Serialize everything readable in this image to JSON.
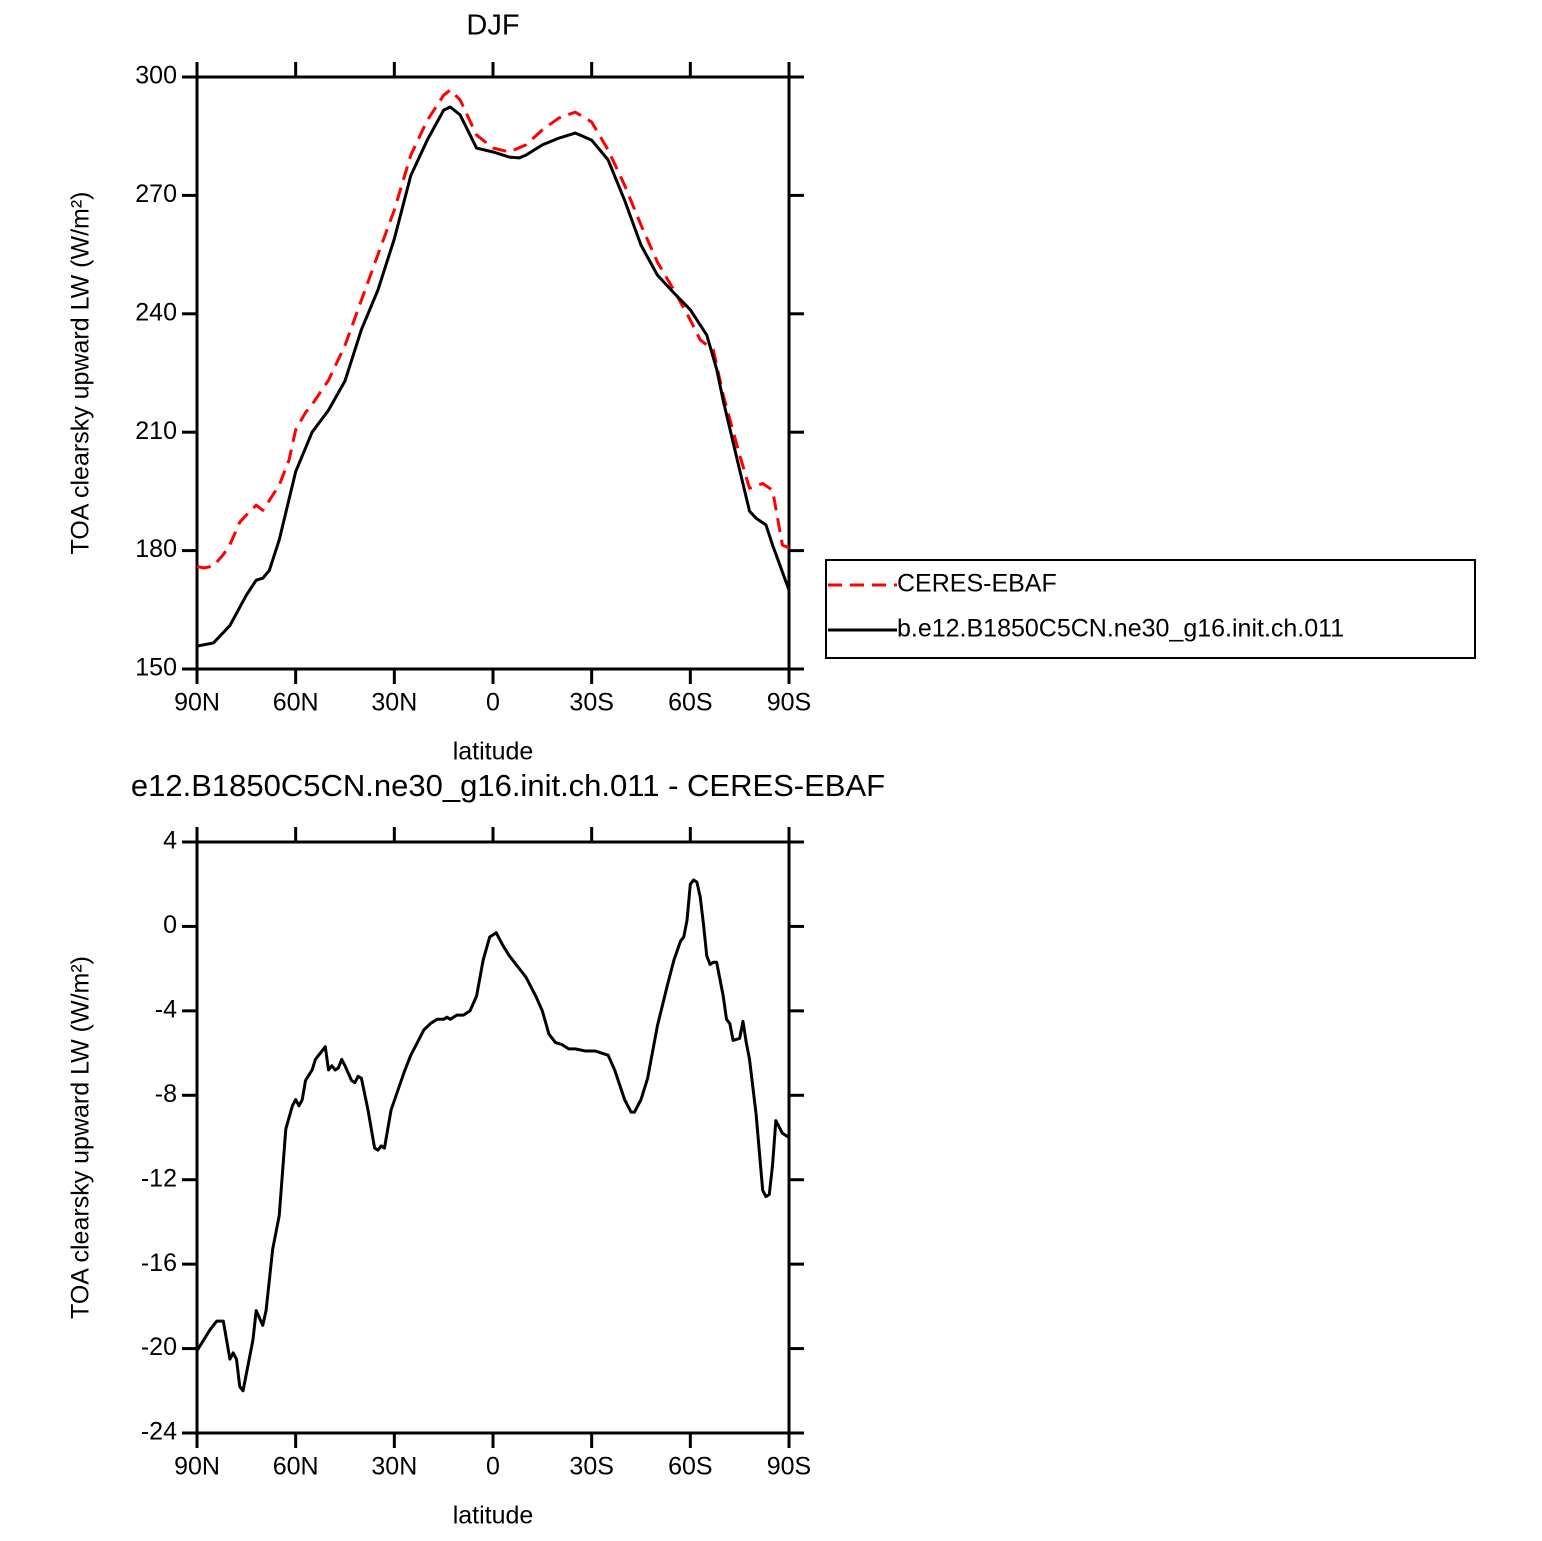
{
  "chart_data": [
    {
      "type": "line",
      "title": "DJF",
      "xlabel": "latitude",
      "ylabel": "TOA clearsky upward LW (W/m²)",
      "xlim": [
        90,
        -90
      ],
      "xticks": [
        {
          "value": 90,
          "label": "90N"
        },
        {
          "value": 60,
          "label": "60N"
        },
        {
          "value": 30,
          "label": "30N"
        },
        0,
        {
          "value": -30,
          "label": "30S"
        },
        {
          "value": -60,
          "label": "60S"
        },
        {
          "value": -90,
          "label": "90S"
        }
      ],
      "ylim": [
        150,
        300
      ],
      "yticks": [
        150,
        180,
        210,
        240,
        270,
        300
      ],
      "legend": "right",
      "series": [
        {
          "name": "CERES-EBAF",
          "color": "#ff0000",
          "dashed": true,
          "x": [
            90,
            88,
            85,
            82,
            80,
            77,
            75,
            72,
            70,
            67,
            65,
            62,
            60,
            57,
            55,
            50,
            45,
            40,
            35,
            30,
            25,
            20,
            15,
            13,
            10,
            5,
            0,
            -5,
            -10,
            -15,
            -20,
            -25,
            -30,
            -35,
            -40,
            -45,
            -50,
            -55,
            -60,
            -63,
            -67,
            -70,
            -75,
            -78,
            -82,
            -85,
            -88,
            -90
          ],
          "values": [
            176,
            175.6,
            176.1,
            179,
            181.5,
            187.2,
            189,
            191.5,
            190.2,
            194,
            196.6,
            203,
            210.6,
            215,
            217,
            223.2,
            232,
            243.5,
            255,
            266.3,
            280.2,
            289,
            295.4,
            296.7,
            294.2,
            285.3,
            282,
            281,
            282.8,
            286.6,
            289.6,
            291.1,
            288.6,
            281.5,
            272.6,
            262.5,
            253.1,
            246,
            238.4,
            233.4,
            230.8,
            219.4,
            204.2,
            195.8,
            197,
            195.3,
            181.4,
            180.7
          ]
        },
        {
          "name": "b.e12.B1850C5CN.ne30_g16.init.ch.011",
          "color": "#000000",
          "dashed": false,
          "x": [
            90,
            85,
            80,
            75,
            72,
            70,
            68,
            65,
            60,
            55,
            50,
            45,
            40,
            35,
            30,
            25,
            20,
            15,
            13,
            10,
            5,
            0,
            -5,
            -8,
            -10,
            -15,
            -20,
            -25,
            -30,
            -35,
            -40,
            -45,
            -50,
            -55,
            -60,
            -65,
            -68,
            -70,
            -75,
            -78,
            -80,
            -83,
            -85,
            -90
          ],
          "values": [
            155.8,
            156.6,
            161,
            168.7,
            172.5,
            173,
            175,
            182.7,
            200,
            210,
            215.6,
            223,
            236,
            246,
            259,
            275,
            284,
            291.6,
            292.4,
            290.4,
            282,
            281,
            279.7,
            279.5,
            280.2,
            282.8,
            284.5,
            285.8,
            284,
            279,
            268.8,
            257.4,
            249.8,
            245.3,
            241,
            234.6,
            226,
            218,
            200.4,
            190,
            188.2,
            186.5,
            181.4,
            170
          ]
        }
      ]
    },
    {
      "type": "line",
      "title": "e12.B1850C5CN.ne30_g16.init.ch.011 - CERES-EBAF",
      "xlabel": "latitude",
      "ylabel": "TOA clearsky upward LW (W/m²)",
      "xlim": [
        90,
        -90
      ],
      "xticks": [
        {
          "value": 90,
          "label": "90N"
        },
        {
          "value": 60,
          "label": "60N"
        },
        {
          "value": 30,
          "label": "30N"
        },
        0,
        {
          "value": -30,
          "label": "30S"
        },
        {
          "value": -60,
          "label": "60S"
        },
        {
          "value": -90,
          "label": "90S"
        }
      ],
      "ylim": [
        -24,
        4
      ],
      "yticks": [
        -24,
        -20,
        -16,
        -12,
        -8,
        -4,
        0,
        4
      ],
      "series": [
        {
          "color": "#000000",
          "dashed": false,
          "x": [
            90,
            88,
            86,
            84,
            82,
            80,
            79,
            78,
            77,
            76,
            73,
            72,
            70,
            69,
            67,
            65,
            63,
            61,
            60,
            59,
            58,
            57,
            55,
            54,
            52,
            51,
            50,
            49,
            48,
            47,
            46,
            45,
            43,
            42,
            41,
            40,
            38,
            36,
            35,
            34,
            33,
            31,
            29,
            27,
            25,
            23,
            21,
            19,
            17,
            15,
            14,
            13,
            11,
            9,
            7,
            5,
            3,
            1,
            0,
            -1,
            -3,
            -5,
            -8,
            -10,
            -13,
            -15,
            -17,
            -19,
            -21,
            -23,
            -25,
            -28,
            -31,
            -33,
            -35,
            -37,
            -40,
            -42,
            -43,
            -45,
            -47,
            -50,
            -53,
            -55,
            -57,
            -58,
            -59,
            -60,
            -61,
            -62,
            -63,
            -64,
            -65,
            -66,
            -67,
            -68,
            -70,
            -71,
            -72,
            -73,
            -75,
            -76,
            -77,
            -78,
            -80,
            -82,
            -83,
            -84,
            -85,
            -86,
            -88,
            -90
          ],
          "values": [
            -20.1,
            -19.6,
            -19.1,
            -18.7,
            -18.7,
            -20.5,
            -20.2,
            -20.5,
            -21.8,
            -22,
            -19.6,
            -18.2,
            -18.9,
            -18.2,
            -15.3,
            -13.7,
            -9.6,
            -8.5,
            -8.2,
            -8.5,
            -8.2,
            -7.3,
            -6.8,
            -6.3,
            -5.9,
            -5.7,
            -6.8,
            -6.6,
            -6.8,
            -6.7,
            -6.3,
            -6.6,
            -7.3,
            -7.4,
            -7.1,
            -7.2,
            -8.7,
            -10.5,
            -10.6,
            -10.4,
            -10.5,
            -8.7,
            -7.8,
            -6.9,
            -6.1,
            -5.5,
            -4.9,
            -4.6,
            -4.4,
            -4.4,
            -4.3,
            -4.4,
            -4.2,
            -4.2,
            -4,
            -3.3,
            -1.6,
            -0.5,
            -0.4,
            -0.3,
            -0.9,
            -1.4,
            -2,
            -2.4,
            -3.3,
            -4,
            -5.1,
            -5.5,
            -5.6,
            -5.8,
            -5.8,
            -5.9,
            -5.9,
            -6,
            -6.1,
            -6.8,
            -8.2,
            -8.8,
            -8.8,
            -8.2,
            -7.2,
            -4.7,
            -2.8,
            -1.6,
            -0.7,
            -0.5,
            0.3,
            2,
            2.2,
            2.1,
            1.4,
            0.1,
            -1.4,
            -1.8,
            -1.7,
            -1.7,
            -3.3,
            -4.4,
            -4.6,
            -5.4,
            -5.3,
            -4.5,
            -5.5,
            -6.3,
            -8.9,
            -12.5,
            -12.8,
            -12.7,
            -11.3,
            -9.2,
            -9.8,
            -10
          ]
        }
      ]
    }
  ]
}
